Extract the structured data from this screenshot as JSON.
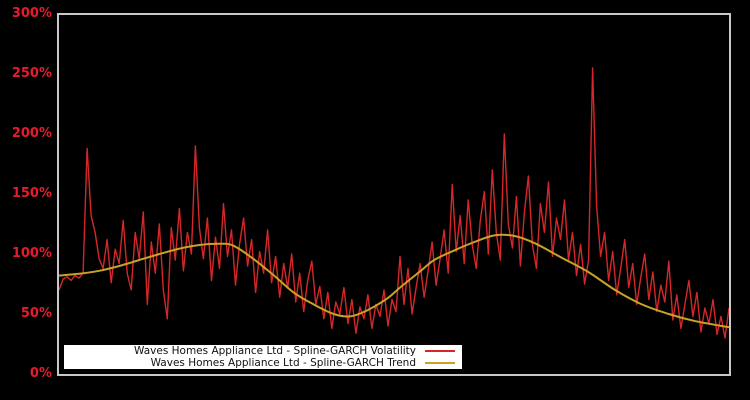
{
  "window": {
    "title": "Spline-GARCH volatility chart"
  },
  "colors": {
    "background": "#000000",
    "plot_border": "#c8c8c8",
    "axis_label": "#e61b2e",
    "volatility": "#d62728",
    "trend": "#c9a227",
    "legend_bg": "#ffffff",
    "legend_text": "#111111"
  },
  "legend": {
    "items": [
      {
        "label": "Waves Homes Appliance Ltd - Spline-GARCH Volatility",
        "color": "#d62728"
      },
      {
        "label": "Waves Homes Appliance Ltd - Spline-GARCH Trend",
        "color": "#c9a227"
      }
    ]
  },
  "chart_data": {
    "type": "line",
    "title": "",
    "xlabel": "",
    "ylabel": "",
    "ylim": [
      0,
      300
    ],
    "y_ticks": [
      "300%",
      "250%",
      "200%",
      "150%",
      "100%",
      "50%",
      "0%"
    ],
    "x_tick_labels": [],
    "grid": false,
    "legend_position": "lower-left-inside",
    "series": [
      {
        "name": "Waves Homes Appliance Ltd - Spline-GARCH Volatility",
        "color": "#d62728",
        "x_spacing": "even-0-to-1",
        "unit": "percent",
        "values_pct": [
          70,
          79,
          81,
          78,
          82,
          80,
          84,
          188,
          132,
          118,
          96,
          88,
          112,
          76,
          104,
          92,
          128,
          84,
          70,
          118,
          96,
          135,
          58,
          110,
          84,
          125,
          70,
          46,
          122,
          95,
          138,
          86,
          118,
          100,
          190,
          122,
          96,
          130,
          78,
          114,
          88,
          142,
          98,
          120,
          74,
          108,
          130,
          90,
          112,
          68,
          102,
          84,
          120,
          76,
          98,
          64,
          92,
          72,
          100,
          60,
          84,
          52,
          78,
          94,
          58,
          73,
          46,
          68,
          38,
          60,
          50,
          72,
          42,
          62,
          34,
          56,
          46,
          66,
          38,
          58,
          48,
          70,
          40,
          62,
          52,
          98,
          58,
          88,
          50,
          72,
          92,
          64,
          86,
          110,
          74,
          96,
          120,
          84,
          158,
          102,
          132,
          92,
          145,
          108,
          88,
          128,
          152,
          100,
          170,
          118,
          95,
          200,
          125,
          105,
          148,
          90,
          135,
          165,
          108,
          88,
          142,
          118,
          160,
          98,
          130,
          112,
          145,
          95,
          118,
          82,
          108,
          75,
          95,
          255,
          140,
          98,
          118,
          78,
          102,
          66,
          88,
          112,
          72,
          92,
          58,
          80,
          100,
          62,
          85,
          52,
          74,
          60,
          94,
          45,
          66,
          38,
          58,
          78,
          48,
          68,
          35,
          55,
          42,
          62,
          33,
          48,
          30,
          55
        ]
      },
      {
        "name": "Waves Homes Appliance Ltd - Spline-GARCH Trend",
        "color": "#c9a227",
        "unit": "percent",
        "keypoints": [
          [
            0.0,
            82
          ],
          [
            0.03,
            83.5
          ],
          [
            0.06,
            86
          ],
          [
            0.09,
            90
          ],
          [
            0.12,
            95
          ],
          [
            0.15,
            100
          ],
          [
            0.18,
            104.5
          ],
          [
            0.21,
            107.5
          ],
          [
            0.24,
            108.5
          ],
          [
            0.26,
            107
          ],
          [
            0.29,
            96
          ],
          [
            0.32,
            82.5
          ],
          [
            0.35,
            68
          ],
          [
            0.38,
            58
          ],
          [
            0.41,
            50
          ],
          [
            0.435,
            48
          ],
          [
            0.46,
            53
          ],
          [
            0.49,
            63
          ],
          [
            0.51,
            72.5
          ],
          [
            0.54,
            86
          ],
          [
            0.56,
            95
          ],
          [
            0.59,
            103
          ],
          [
            0.62,
            110
          ],
          [
            0.65,
            115.5
          ],
          [
            0.68,
            115
          ],
          [
            0.71,
            109
          ],
          [
            0.75,
            97
          ],
          [
            0.79,
            85
          ],
          [
            0.83,
            70
          ],
          [
            0.87,
            58
          ],
          [
            0.91,
            50
          ],
          [
            0.95,
            44
          ],
          [
            1.0,
            39
          ]
        ]
      }
    ]
  }
}
